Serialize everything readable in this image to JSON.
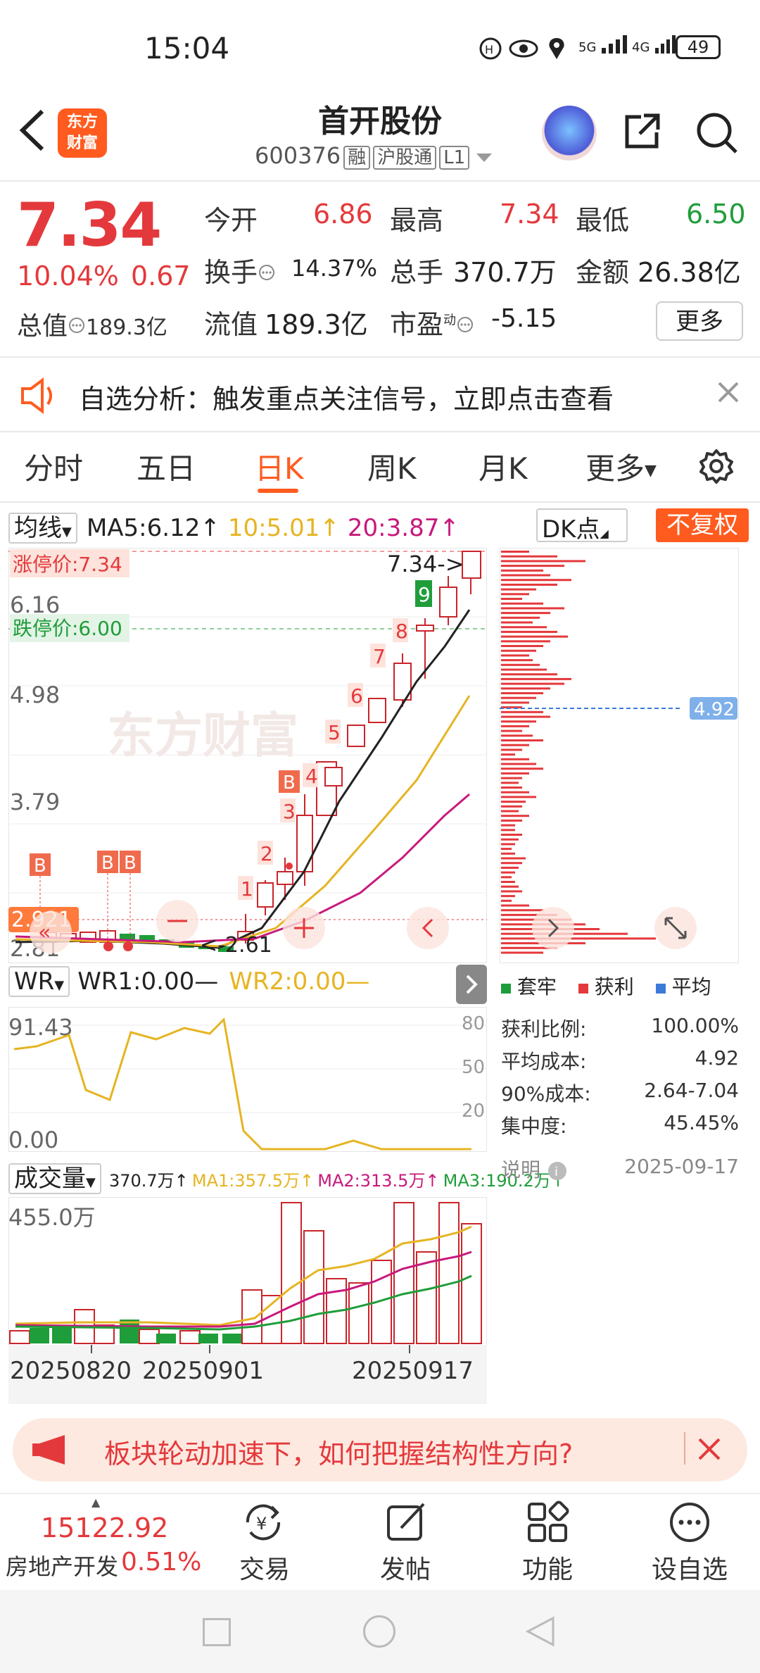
{
  "status": {
    "time": "15:04",
    "battery": "49",
    "net1": "5G",
    "net2": "4G"
  },
  "header": {
    "title": "首开股份",
    "code": "600376",
    "tag1": "融",
    "tag2": "沪股通",
    "tag3": "L1",
    "logo_line1": "东方",
    "logo_line2": "财富"
  },
  "quote": {
    "price": "7.34",
    "pct": "10.04%",
    "change": "0.67",
    "mcap_label": "总值",
    "mcap_value": "189.3亿",
    "open_label": "今开",
    "open": "6.86",
    "high_label": "最高",
    "high": "7.34",
    "low_label": "最低",
    "low": "6.50",
    "turnover_label": "换手",
    "turnover": "14.37%",
    "vol_label": "总手",
    "vol": "370.7万",
    "amount_label": "金额",
    "amount": "26.38亿",
    "float_label": "流值",
    "float": "189.3亿",
    "pe_label": "市盈",
    "pe_sup": "动",
    "pe": "-5.15",
    "more": "更多"
  },
  "notice": {
    "text": "自选分析：触发重点关注信号，立即点击查看"
  },
  "tabs": [
    "分时",
    "五日",
    "日K",
    "周K",
    "月K",
    "更多"
  ],
  "ma": {
    "selector": "均线",
    "ma5": "MA5:6.12↑",
    "ma10": "10:5.01↑",
    "ma20": "20:3.87↑",
    "dk": "DK点",
    "fq": "不复权",
    "colors": {
      "ma5": "#222222",
      "ma10": "#e6b422",
      "ma20": "#c8197c"
    }
  },
  "kchart": {
    "limit_up": "涨停价:7.34",
    "limit_down": "跌停价:6.00",
    "y_labels": [
      "6.16",
      "4.98",
      "3.79",
      "2.81"
    ],
    "top_mark": "7.34->",
    "low_mark": "<-2.61",
    "cursor_price": "2.921",
    "watermark": "东方财富",
    "count_labels": [
      "1",
      "2",
      "3",
      "4",
      "5",
      "6",
      "7",
      "8",
      "9"
    ],
    "b_label": "B"
  },
  "chip": {
    "avg": "4.92",
    "legend": [
      "套牢",
      "获利",
      "平均"
    ],
    "rows": [
      {
        "label": "获利比例:",
        "value": "100.00%"
      },
      {
        "label": "平均成本:",
        "value": "4.92"
      },
      {
        "label": "90%成本:",
        "value": "2.64-7.04"
      },
      {
        "label": "集中度:",
        "value": "45.45%"
      }
    ],
    "note": "说明",
    "date": "2025-09-17"
  },
  "wr": {
    "selector": "WR",
    "wr1": "WR1:0.00",
    "wr2": "WR2:0.00",
    "top": "91.43",
    "bottom": "0.00",
    "levels": [
      "80",
      "50",
      "20"
    ]
  },
  "volume": {
    "selector": "成交量",
    "vol": "370.7万↑",
    "ma1": "MA1:357.5万↑",
    "ma2": "MA2:313.5万↑",
    "ma3": "MA3:190.2万↑",
    "top": "455.0万",
    "dates": [
      "20250820",
      "20250901",
      "20250917"
    ]
  },
  "banner": {
    "text": "板块轮动加速下，如何把握结构性方向?"
  },
  "bottom": {
    "index_value": "15122.92",
    "index_name": "房地产开发",
    "index_pct": "0.51%",
    "nav": [
      "交易",
      "发帖",
      "功能",
      "设自选"
    ]
  }
}
